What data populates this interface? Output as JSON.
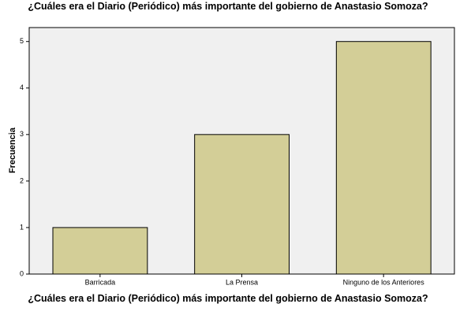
{
  "chart_data": {
    "type": "bar",
    "title": "¿Cuáles era el Diario (Periódico) más importante del gobierno de Anastasio Somoza?",
    "x_label": "¿Cuáles era el Diario (Periódico) más importante del gobierno de Anastasio Somoza?",
    "y_label": "Frecuencia",
    "categories": [
      "Barricada",
      "La Prensa",
      "Ninguno de los Anteriores"
    ],
    "values": [
      1,
      3,
      5
    ],
    "color": "#d3ce97",
    "ylim": [
      0,
      5.3
    ],
    "yticks": [
      0,
      1,
      2,
      3,
      4,
      5
    ],
    "grid": false
  }
}
